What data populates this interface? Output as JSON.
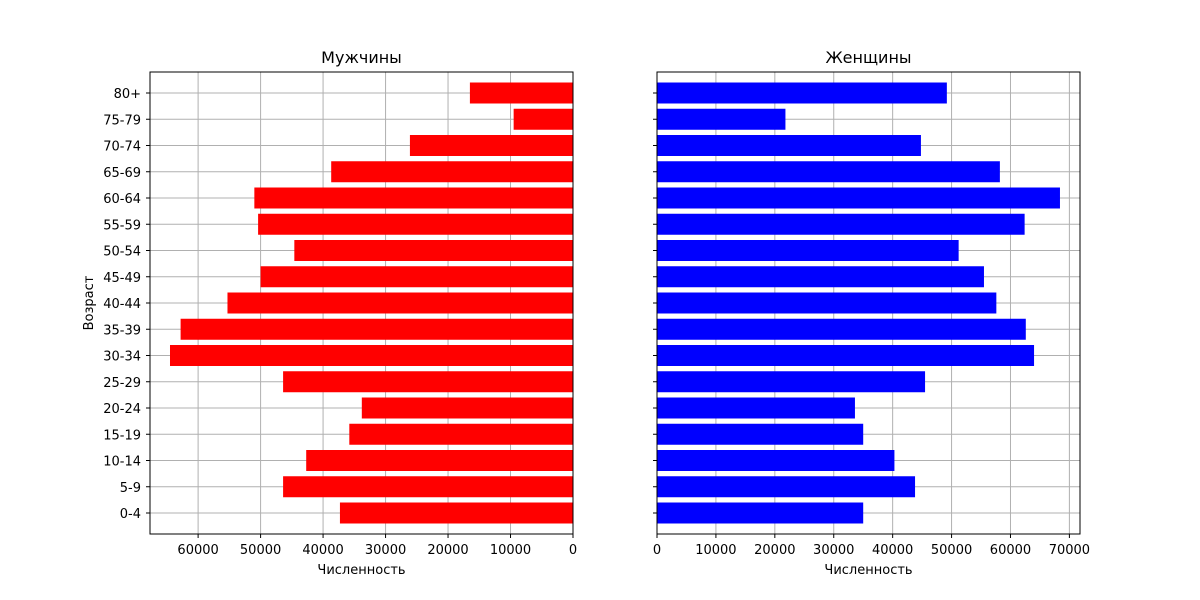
{
  "chart_data": [
    {
      "type": "bar",
      "orientation": "horizontal",
      "x_direction": "inverted",
      "title": "Мужчины",
      "xlabel": "Численность",
      "ylabel": "Возраст",
      "color": "#ff0000",
      "grid": true,
      "xlim": [
        0,
        67700
      ],
      "xticks": [
        0,
        10000,
        20000,
        30000,
        40000,
        50000,
        60000
      ],
      "categories": [
        "0-4",
        "5-9",
        "10-14",
        "15-19",
        "20-24",
        "25-29",
        "30-34",
        "35-39",
        "40-44",
        "45-49",
        "50-54",
        "55-59",
        "60-64",
        "65-69",
        "70-74",
        "75-79",
        "80+"
      ],
      "values": [
        37300,
        46400,
        42700,
        35800,
        33800,
        46400,
        64500,
        62800,
        55300,
        50000,
        44600,
        50400,
        51000,
        38700,
        26100,
        9500,
        16500
      ]
    },
    {
      "type": "bar",
      "orientation": "horizontal",
      "title": "Женщины",
      "xlabel": "Численность",
      "ylabel": "",
      "color": "#0000ff",
      "grid": true,
      "xlim": [
        0,
        71800
      ],
      "xticks": [
        0,
        10000,
        20000,
        30000,
        40000,
        50000,
        60000,
        70000
      ],
      "categories": [
        "0-4",
        "5-9",
        "10-14",
        "15-19",
        "20-24",
        "25-29",
        "30-34",
        "35-39",
        "40-44",
        "45-49",
        "50-54",
        "55-59",
        "60-64",
        "65-69",
        "70-74",
        "75-79",
        "80+"
      ],
      "values": [
        35000,
        43800,
        40300,
        35000,
        33600,
        45500,
        64000,
        62600,
        57600,
        55500,
        51200,
        62400,
        68400,
        58200,
        44800,
        21800,
        49200
      ]
    }
  ]
}
